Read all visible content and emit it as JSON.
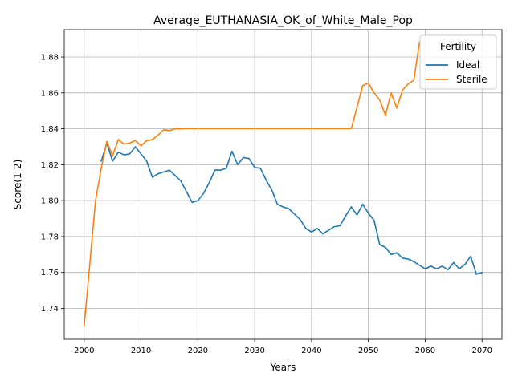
{
  "chart_data": {
    "type": "line",
    "title": "Average_EUTHANASIA_OK_of_White_Male_Pop",
    "xlabel": "Years",
    "ylabel": "Score(1-2)",
    "xlim": [
      1996.5,
      2073.5
    ],
    "ylim": [
      1.7228,
      1.8952
    ],
    "xticks": [
      2000,
      2010,
      2020,
      2030,
      2040,
      2050,
      2060,
      2070
    ],
    "yticks": [
      1.74,
      1.76,
      1.78,
      1.8,
      1.82,
      1.84,
      1.86,
      1.88
    ],
    "grid": true,
    "legend": {
      "title": "Fertility",
      "placement": "top-right"
    },
    "series": [
      {
        "name": "Ideal",
        "color": "#1f77b4",
        "x": [
          2003,
          2004,
          2005,
          2006,
          2007,
          2008,
          2009,
          2010,
          2011,
          2012,
          2013,
          2014,
          2015,
          2016,
          2017,
          2018,
          2019,
          2020,
          2021,
          2022,
          2023,
          2024,
          2025,
          2026,
          2027,
          2028,
          2029,
          2030,
          2031,
          2032,
          2033,
          2034,
          2035,
          2036,
          2037,
          2038,
          2039,
          2040,
          2041,
          2042,
          2043,
          2044,
          2045,
          2046,
          2047,
          2048,
          2049,
          2050,
          2051,
          2052,
          2053,
          2054,
          2055,
          2056,
          2057,
          2058,
          2059,
          2060,
          2061,
          2062,
          2063,
          2064,
          2065,
          2066,
          2067,
          2068,
          2069,
          2070
        ],
        "y": [
          1.822,
          1.832,
          1.822,
          1.827,
          1.8255,
          1.826,
          1.83,
          1.826,
          1.822,
          1.813,
          1.815,
          1.816,
          1.817,
          1.814,
          1.811,
          1.805,
          1.799,
          1.8,
          1.804,
          1.81,
          1.817,
          1.817,
          1.818,
          1.8275,
          1.82,
          1.824,
          1.8235,
          1.8185,
          1.818,
          1.8115,
          1.806,
          1.798,
          1.7965,
          1.7955,
          1.7925,
          1.7895,
          1.7845,
          1.7825,
          1.7845,
          1.7815,
          1.7835,
          1.7855,
          1.786,
          1.7915,
          1.7965,
          1.792,
          1.798,
          1.793,
          1.789,
          1.7755,
          1.774,
          1.77,
          1.771,
          1.768,
          1.7675,
          1.766,
          1.764,
          1.762,
          1.7635,
          1.762,
          1.7635,
          1.7615,
          1.7655,
          1.762,
          1.7645,
          1.769,
          1.759,
          1.76
        ]
      },
      {
        "name": "Sterile",
        "color": "#ff7f0e",
        "x": [
          2000,
          2001,
          2002,
          2003,
          2004,
          2005,
          2006,
          2007,
          2008,
          2009,
          2010,
          2011,
          2012,
          2013,
          2014,
          2015,
          2016,
          2017,
          2018,
          2019,
          2020,
          2021,
          2022,
          2023,
          2024,
          2025,
          2026,
          2027,
          2028,
          2029,
          2030,
          2031,
          2032,
          2033,
          2034,
          2035,
          2036,
          2037,
          2038,
          2039,
          2040,
          2041,
          2042,
          2043,
          2044,
          2045,
          2046,
          2047,
          2048,
          2049,
          2050,
          2051,
          2052,
          2053,
          2054,
          2055,
          2056,
          2057,
          2058,
          2059
        ],
        "y": [
          1.73,
          1.765,
          1.8,
          1.818,
          1.833,
          1.825,
          1.834,
          1.8315,
          1.832,
          1.8335,
          1.8305,
          1.8335,
          1.834,
          1.8365,
          1.8395,
          1.839,
          1.84,
          1.84,
          1.8402,
          1.8402,
          1.8402,
          1.8402,
          1.8402,
          1.8402,
          1.8402,
          1.8402,
          1.8402,
          1.8402,
          1.8402,
          1.8402,
          1.8402,
          1.8402,
          1.8402,
          1.8402,
          1.8402,
          1.8402,
          1.8402,
          1.8402,
          1.8402,
          1.8402,
          1.8402,
          1.8402,
          1.8402,
          1.8402,
          1.8402,
          1.8402,
          1.8402,
          1.8402,
          1.852,
          1.864,
          1.8655,
          1.86,
          1.856,
          1.8475,
          1.86,
          1.8515,
          1.8615,
          1.865,
          1.867,
          1.8885
        ]
      }
    ]
  }
}
